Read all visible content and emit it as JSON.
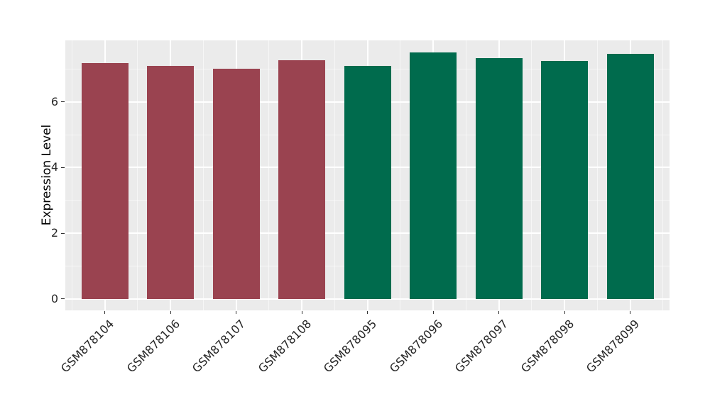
{
  "chart_data": {
    "type": "bar",
    "title": "",
    "xlabel": "",
    "ylabel": "Expression Level",
    "categories": [
      "GSM878104",
      "GSM878106",
      "GSM878107",
      "GSM878108",
      "GSM878095",
      "GSM878096",
      "GSM878097",
      "GSM878098",
      "GSM878099"
    ],
    "values": [
      7.18,
      7.1,
      7.01,
      7.26,
      7.1,
      7.5,
      7.33,
      7.24,
      7.47
    ],
    "bar_colors": [
      "#9A4350",
      "#9A4350",
      "#9A4350",
      "#9A4350",
      "#006B4D",
      "#006B4D",
      "#006B4D",
      "#006B4D",
      "#006B4D"
    ],
    "color_groups": [
      {
        "color": "#9A4350",
        "categories": [
          "GSM878104",
          "GSM878106",
          "GSM878107",
          "GSM878108"
        ]
      },
      {
        "color": "#006B4D",
        "categories": [
          "GSM878095",
          "GSM878096",
          "GSM878097",
          "GSM878098",
          "GSM878099"
        ]
      }
    ],
    "yticks": [
      0,
      2,
      4,
      6
    ],
    "minor_yticks": [
      1,
      3,
      5,
      7
    ],
    "ylim": [
      -0.35,
      7.87
    ],
    "bar_width_fraction": 0.71,
    "x_tick_label_rotation_deg": 45,
    "legend": "none",
    "grid": "on",
    "panel_bg": "#EBEBEB",
    "grid_color": "#FFFFFF",
    "axis_text_color": "#262626"
  }
}
